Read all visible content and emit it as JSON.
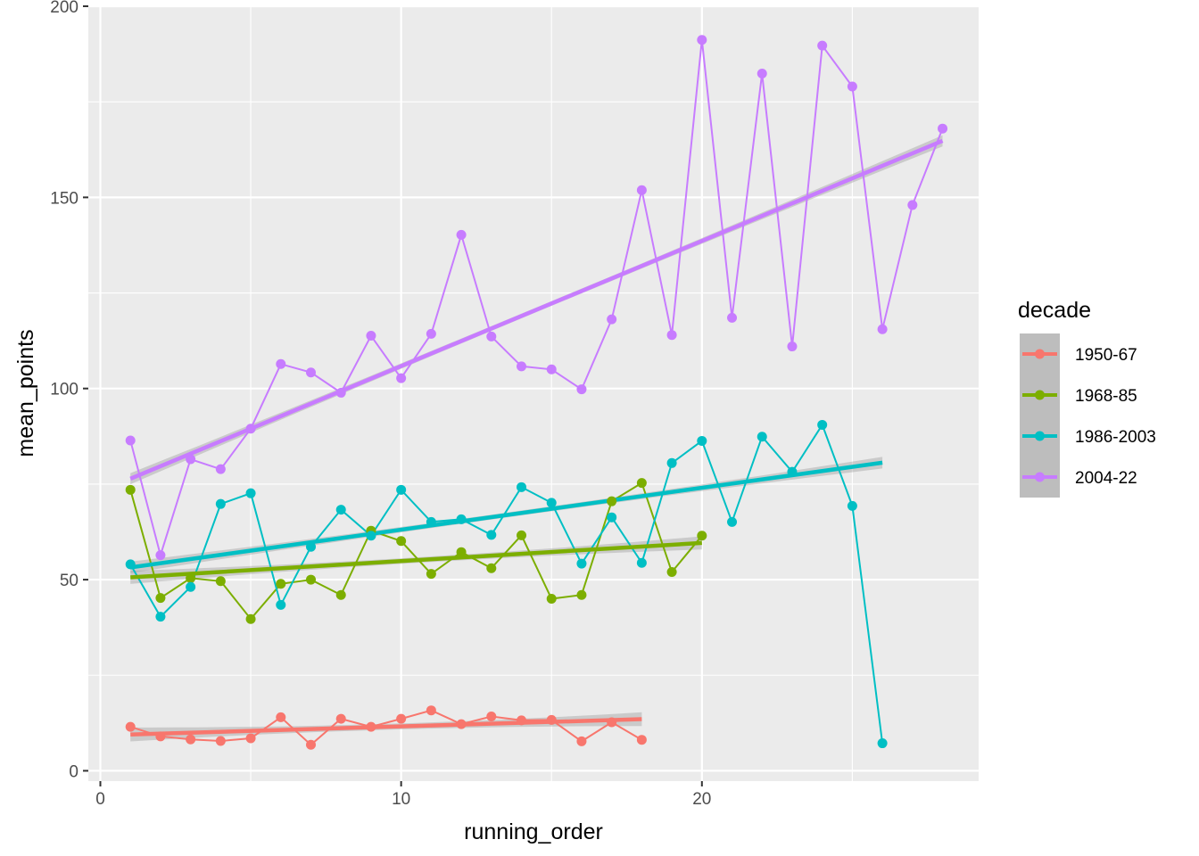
{
  "chart_data": {
    "type": "line",
    "xlabel": "running_order",
    "ylabel": "mean_points",
    "xlim": [
      -0.4,
      29.2
    ],
    "ylim": [
      -2.7,
      200
    ],
    "x_ticks": [
      0,
      10,
      20
    ],
    "y_ticks": [
      0,
      50,
      100,
      150,
      200
    ],
    "x_tick_labels": [
      "0",
      "10",
      "20"
    ],
    "y_tick_labels": [
      "0",
      "50",
      "100",
      "150",
      "200"
    ],
    "grid": true,
    "legend": {
      "title": "decade",
      "position": "right"
    },
    "series": [
      {
        "name": "1950-67",
        "color": "#F8766D",
        "x": [
          1,
          2,
          3,
          4,
          5,
          6,
          7,
          8,
          9,
          10,
          11,
          12,
          13,
          14,
          15,
          16,
          17,
          18
        ],
        "y": [
          11.5,
          9.0,
          8.2,
          7.8,
          8.5,
          14.0,
          6.8,
          13.6,
          11.5,
          13.6,
          15.8,
          12.2,
          14.2,
          13.2,
          13.3,
          7.7,
          12.7,
          8.1
        ],
        "trend": {
          "start": [
            1,
            9.5
          ],
          "end": [
            18,
            13.5
          ]
        }
      },
      {
        "name": "1968-85",
        "color": "#7CAE00",
        "x": [
          1,
          2,
          3,
          4,
          5,
          6,
          7,
          8,
          9,
          10,
          11,
          12,
          13,
          14,
          15,
          16,
          17,
          18,
          19,
          20
        ],
        "y": [
          73.5,
          45.2,
          50.4,
          49.6,
          39.7,
          48.9,
          50.0,
          46.0,
          62.8,
          60.1,
          51.5,
          57.2,
          53.0,
          61.6,
          45.0,
          46.0,
          70.5,
          75.3,
          52.0,
          61.5
        ],
        "trend": {
          "start": [
            1,
            50.6
          ],
          "end": [
            20,
            59.6
          ]
        }
      },
      {
        "name": "1986-2003",
        "color": "#00BFC4",
        "x": [
          1,
          2,
          3,
          4,
          5,
          6,
          7,
          8,
          9,
          10,
          11,
          12,
          13,
          14,
          15,
          16,
          17,
          18,
          19,
          20,
          21,
          22,
          23,
          24,
          25,
          26
        ],
        "y": [
          54.0,
          40.3,
          48.1,
          69.8,
          72.6,
          43.4,
          58.6,
          68.3,
          61.5,
          73.5,
          65.1,
          65.8,
          61.7,
          74.2,
          70.1,
          54.2,
          66.3,
          54.4,
          80.5,
          86.3,
          65.1,
          87.4,
          78.2,
          90.5,
          69.3,
          7.2
        ],
        "trend": {
          "start": [
            1,
            53.2
          ],
          "end": [
            26,
            80.6
          ]
        }
      },
      {
        "name": "2004-22",
        "color": "#C77CFF",
        "x": [
          1,
          2,
          3,
          4,
          5,
          6,
          7,
          8,
          9,
          10,
          11,
          12,
          13,
          14,
          15,
          16,
          17,
          18,
          19,
          20,
          21,
          22,
          23,
          24,
          25,
          26,
          27,
          28
        ],
        "y": [
          86.4,
          56.4,
          81.5,
          78.9,
          89.5,
          106.4,
          104.2,
          98.9,
          113.8,
          102.7,
          114.3,
          140.2,
          113.6,
          105.8,
          105.0,
          99.8,
          118.1,
          151.9,
          114.0,
          191.2,
          118.5,
          182.4,
          111.0,
          189.7,
          179.0,
          115.5,
          148.0,
          168.0
        ],
        "trend": {
          "start": [
            1,
            76.4
          ],
          "end": [
            28,
            164.8
          ]
        }
      }
    ]
  }
}
